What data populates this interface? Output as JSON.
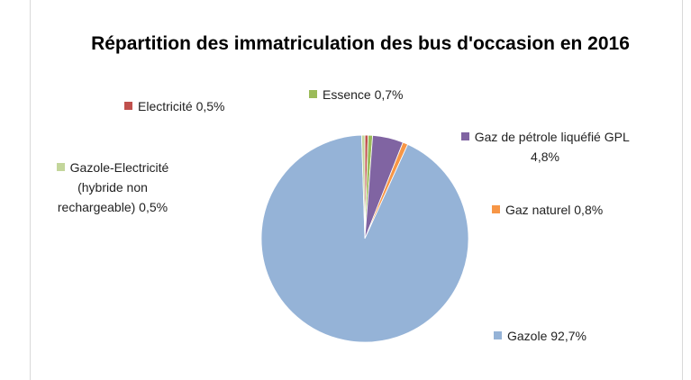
{
  "chart_data": {
    "type": "pie",
    "title": "Répartition des immatriculation des bus d'occasion en 2016",
    "categories": [
      "Electricité",
      "Essence",
      "Gaz de pétrole liquéfié GPL",
      "Gaz naturel",
      "Gazole",
      "Gazole-Electricité (hybride non rechargeable)"
    ],
    "values": [
      0.5,
      0.7,
      4.8,
      0.8,
      92.7,
      0.5
    ],
    "value_labels": [
      "0,5%",
      "0,7%",
      "4,8%",
      "0,8%",
      "92,7%",
      "0,5%"
    ],
    "colors": [
      "#c0504d",
      "#9bbb59",
      "#8064a2",
      "#f79646",
      "#95b3d7",
      "#c3d69b"
    ]
  }
}
